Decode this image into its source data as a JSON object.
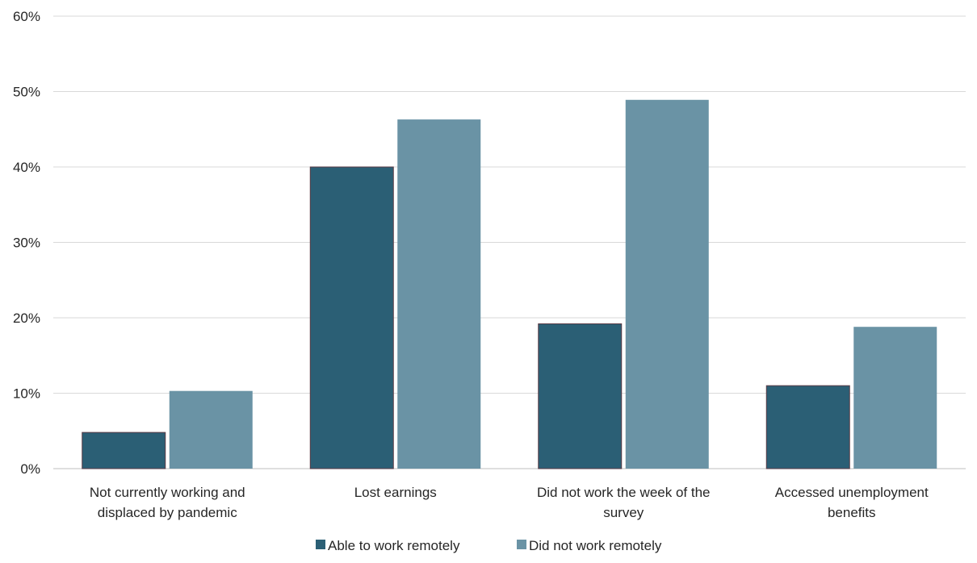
{
  "chart_data": {
    "type": "bar",
    "categories": [
      [
        "Not currently working and",
        "displaced by pandemic"
      ],
      [
        "Lost earnings"
      ],
      [
        "Did not work the week of the",
        "survey"
      ],
      [
        "Accessed unemployment",
        "benefits"
      ]
    ],
    "series": [
      {
        "name": "Able to work remotely",
        "color": "#2b5f75",
        "values": [
          4.8,
          40.0,
          19.2,
          11.0
        ]
      },
      {
        "name": "Did not work remotely",
        "color": "#6a93a5",
        "values": [
          10.3,
          46.3,
          48.9,
          18.8
        ]
      }
    ],
    "ylim": [
      0,
      60
    ],
    "yticks": [
      0,
      10,
      20,
      30,
      40,
      50,
      60
    ],
    "ytick_labels": [
      "0%",
      "10%",
      "20%",
      "30%",
      "40%",
      "50%",
      "60%"
    ],
    "grid": true,
    "legend": "bottom-center",
    "title": "",
    "xlabel": "",
    "ylabel": ""
  }
}
